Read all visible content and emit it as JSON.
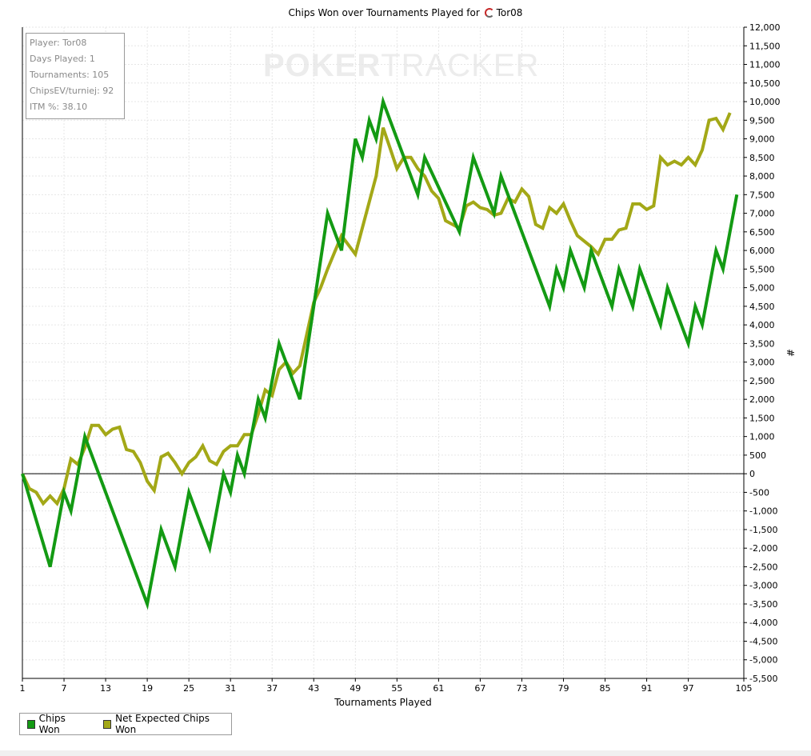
{
  "title_prefix": "Chips Won over Tournaments Played for",
  "title_player": "Tor08",
  "watermark": {
    "bold": "POKER",
    "light": "TRACKER"
  },
  "stats": [
    "Player: Tor08",
    "Days Played: 1",
    "Tournaments: 105",
    "ChipsEV/turniej: 92",
    "ITM %: 38.10"
  ],
  "chart_data": {
    "type": "line",
    "xlabel": "Tournaments Played",
    "ylabel": "#",
    "xlim": [
      1,
      105
    ],
    "ylim": [
      -5500,
      12000
    ],
    "x_ticks": [
      1,
      7,
      13,
      19,
      25,
      31,
      37,
      43,
      49,
      55,
      61,
      67,
      73,
      79,
      85,
      91,
      97,
      105
    ],
    "y_ticks": [
      12000,
      11500,
      11000,
      10500,
      10000,
      9500,
      9000,
      8500,
      8000,
      7500,
      7000,
      6500,
      6000,
      5500,
      5000,
      4500,
      4000,
      3500,
      3000,
      2500,
      2000,
      1500,
      1000,
      500,
      0,
      -500,
      -1000,
      -1500,
      -2000,
      -2500,
      -3000,
      -3500,
      -4000,
      -4500,
      -5000,
      -5500
    ],
    "y_tick_labels": [
      "12,000",
      "11,500",
      "11,000",
      "10,500",
      "10,000",
      "9,500",
      "9,000",
      "8,500",
      "8,000",
      "7,500",
      "7,000",
      "6,500",
      "6,000",
      "5,500",
      "5,000",
      "4,500",
      "4,000",
      "3,500",
      "3,000",
      "2,500",
      "2,000",
      "1,500",
      "1,000",
      "500",
      "0",
      "-500",
      "-1,000",
      "-1,500",
      "-2,000",
      "-2,500",
      "-3,000",
      "-3,500",
      "-4,000",
      "-4,500",
      "-5,000",
      "-5,500"
    ],
    "grid": true,
    "legend_position": "bottom-left",
    "series": [
      {
        "name": "Chips Won",
        "color": "#139a13",
        "points": [
          [
            1,
            0
          ],
          [
            5,
            -2500
          ],
          [
            7,
            -500
          ],
          [
            8,
            -1000
          ],
          [
            10,
            1000
          ],
          [
            19,
            -3500
          ],
          [
            21,
            -1500
          ],
          [
            23,
            -2500
          ],
          [
            25,
            -500
          ],
          [
            28,
            -2000
          ],
          [
            30,
            0
          ],
          [
            31,
            -500
          ],
          [
            32,
            500
          ],
          [
            33,
            0
          ],
          [
            35,
            2000
          ],
          [
            36,
            1500
          ],
          [
            38,
            3500
          ],
          [
            41,
            2000
          ],
          [
            45,
            7000
          ],
          [
            47,
            6000
          ],
          [
            49,
            9000
          ],
          [
            50,
            8500
          ],
          [
            51,
            9500
          ],
          [
            52,
            9000
          ],
          [
            53,
            10000
          ],
          [
            58,
            7500
          ],
          [
            59,
            8500
          ],
          [
            64,
            6500
          ],
          [
            66,
            8500
          ],
          [
            69,
            7000
          ],
          [
            70,
            8000
          ],
          [
            77,
            4500
          ],
          [
            78,
            5500
          ],
          [
            79,
            5000
          ],
          [
            80,
            6000
          ],
          [
            82,
            5000
          ],
          [
            83,
            6000
          ],
          [
            86,
            4500
          ],
          [
            87,
            5500
          ],
          [
            89,
            4500
          ],
          [
            90,
            5500
          ],
          [
            93,
            4000
          ],
          [
            94,
            5000
          ],
          [
            97,
            3500
          ],
          [
            98,
            4500
          ],
          [
            99,
            4000
          ],
          [
            101,
            6000
          ],
          [
            102,
            5500
          ],
          [
            104,
            7500
          ]
        ]
      },
      {
        "name": "Net Expected Chips Won",
        "color": "#a3a817",
        "points": [
          [
            1,
            0
          ],
          [
            2,
            -400
          ],
          [
            3,
            -500
          ],
          [
            4,
            -800
          ],
          [
            5,
            -600
          ],
          [
            6,
            -800
          ],
          [
            7,
            -400
          ],
          [
            8,
            400
          ],
          [
            9,
            250
          ],
          [
            10,
            700
          ],
          [
            11,
            1300
          ],
          [
            12,
            1300
          ],
          [
            13,
            1050
          ],
          [
            14,
            1200
          ],
          [
            15,
            1250
          ],
          [
            16,
            650
          ],
          [
            17,
            600
          ],
          [
            18,
            300
          ],
          [
            19,
            -200
          ],
          [
            20,
            -450
          ],
          [
            21,
            450
          ],
          [
            22,
            550
          ],
          [
            23,
            300
          ],
          [
            24,
            0
          ],
          [
            25,
            300
          ],
          [
            26,
            450
          ],
          [
            27,
            750
          ],
          [
            28,
            350
          ],
          [
            29,
            250
          ],
          [
            30,
            600
          ],
          [
            31,
            750
          ],
          [
            32,
            750
          ],
          [
            33,
            1050
          ],
          [
            34,
            1050
          ],
          [
            35,
            1600
          ],
          [
            36,
            2250
          ],
          [
            37,
            2100
          ],
          [
            38,
            2800
          ],
          [
            39,
            3000
          ],
          [
            40,
            2700
          ],
          [
            41,
            2900
          ],
          [
            43,
            4600
          ],
          [
            44,
            5000
          ],
          [
            45,
            5500
          ],
          [
            46,
            5950
          ],
          [
            47,
            6400
          ],
          [
            48,
            6150
          ],
          [
            49,
            5900
          ],
          [
            52,
            8000
          ],
          [
            53,
            9300
          ],
          [
            54,
            8750
          ],
          [
            55,
            8200
          ],
          [
            56,
            8500
          ],
          [
            57,
            8500
          ],
          [
            58,
            8200
          ],
          [
            59,
            8000
          ],
          [
            60,
            7600
          ],
          [
            61,
            7400
          ],
          [
            62,
            6800
          ],
          [
            63,
            6700
          ],
          [
            64,
            6600
          ],
          [
            65,
            7200
          ],
          [
            66,
            7300
          ],
          [
            67,
            7150
          ],
          [
            68,
            7100
          ],
          [
            69,
            6950
          ],
          [
            70,
            7000
          ],
          [
            71,
            7400
          ],
          [
            72,
            7300
          ],
          [
            73,
            7650
          ],
          [
            74,
            7450
          ],
          [
            75,
            6700
          ],
          [
            76,
            6600
          ],
          [
            77,
            7150
          ],
          [
            78,
            7000
          ],
          [
            79,
            7250
          ],
          [
            80,
            6800
          ],
          [
            81,
            6400
          ],
          [
            83,
            6100
          ],
          [
            84,
            5900
          ],
          [
            85,
            6300
          ],
          [
            86,
            6300
          ],
          [
            87,
            6550
          ],
          [
            88,
            6600
          ],
          [
            89,
            7250
          ],
          [
            90,
            7250
          ],
          [
            91,
            7100
          ],
          [
            92,
            7200
          ],
          [
            93,
            8500
          ],
          [
            94,
            8300
          ],
          [
            95,
            8400
          ],
          [
            96,
            8300
          ],
          [
            97,
            8500
          ],
          [
            98,
            8300
          ],
          [
            99,
            8700
          ],
          [
            100,
            9500
          ],
          [
            101,
            9550
          ],
          [
            102,
            9250
          ],
          [
            103,
            9700
          ]
        ]
      }
    ]
  }
}
